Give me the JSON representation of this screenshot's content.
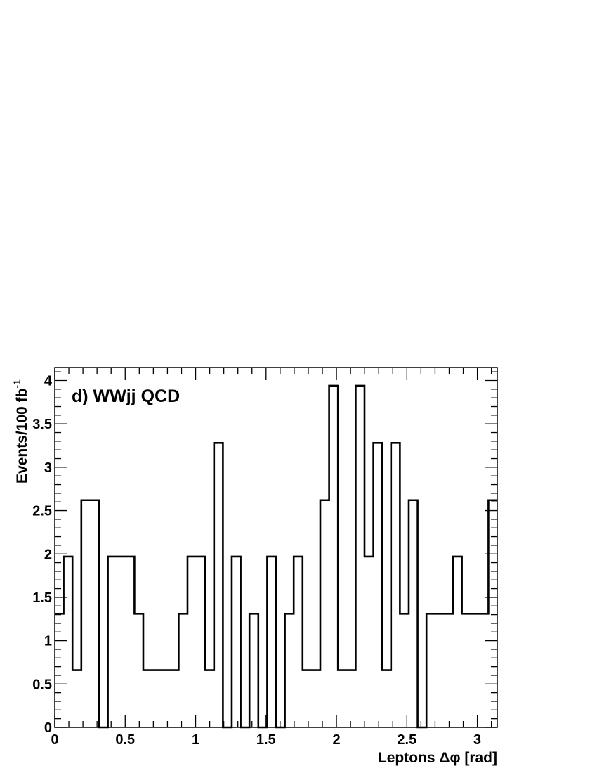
{
  "chart_data": {
    "type": "histogram",
    "title": "d) WWjj QCD",
    "xlabel": "Leptons Δφ [rad]",
    "ylabel": "Events/100 fb",
    "ylabel_superscript": "-1",
    "xlim": [
      0,
      3.1416
    ],
    "ylim": [
      0,
      4.15
    ],
    "x_ticks": [
      0,
      0.5,
      1,
      1.5,
      2,
      2.5,
      3
    ],
    "x_tick_labels": [
      "0",
      "0.5",
      "1",
      "1.5",
      "2",
      "2.5",
      "3"
    ],
    "y_ticks": [
      0,
      0.5,
      1,
      1.5,
      2,
      2.5,
      3,
      3.5,
      4
    ],
    "y_tick_labels": [
      "0",
      "0.5",
      "1",
      "1.5",
      "2",
      "2.5",
      "3",
      "3.5",
      "4"
    ],
    "bin_edges": [
      0,
      0.0628,
      0.1257,
      0.1885,
      0.2513,
      0.3142,
      0.377,
      0.4398,
      0.5027,
      0.5655,
      0.6283,
      0.6912,
      0.754,
      0.8168,
      0.8796,
      0.9425,
      1.0053,
      1.0681,
      1.131,
      1.1938,
      1.2566,
      1.3195,
      1.3823,
      1.4451,
      1.508,
      1.5708,
      1.6336,
      1.6965,
      1.7593,
      1.8221,
      1.885,
      1.9478,
      2.0106,
      2.0735,
      2.1363,
      2.1991,
      2.2619,
      2.3248,
      2.3876,
      2.4504,
      2.5133,
      2.5761,
      2.6389,
      2.7018,
      2.7646,
      2.8274,
      2.8903,
      2.9531,
      3.0159,
      3.0788,
      3.1416
    ],
    "values": [
      1.31,
      1.97,
      0.66,
      2.62,
      2.62,
      0,
      1.97,
      1.97,
      1.97,
      1.31,
      0.66,
      0.66,
      0.66,
      0.66,
      1.31,
      1.97,
      1.97,
      0.66,
      3.28,
      0,
      1.97,
      0,
      1.31,
      0,
      1.97,
      0,
      1.31,
      1.97,
      0.66,
      0.66,
      2.62,
      3.94,
      0.66,
      0.66,
      3.94,
      1.97,
      3.28,
      0.66,
      3.28,
      1.31,
      2.62,
      0,
      1.31,
      1.31,
      1.31,
      1.97,
      1.31,
      1.31,
      1.31,
      2.62
    ],
    "grid": false,
    "legend": false
  }
}
